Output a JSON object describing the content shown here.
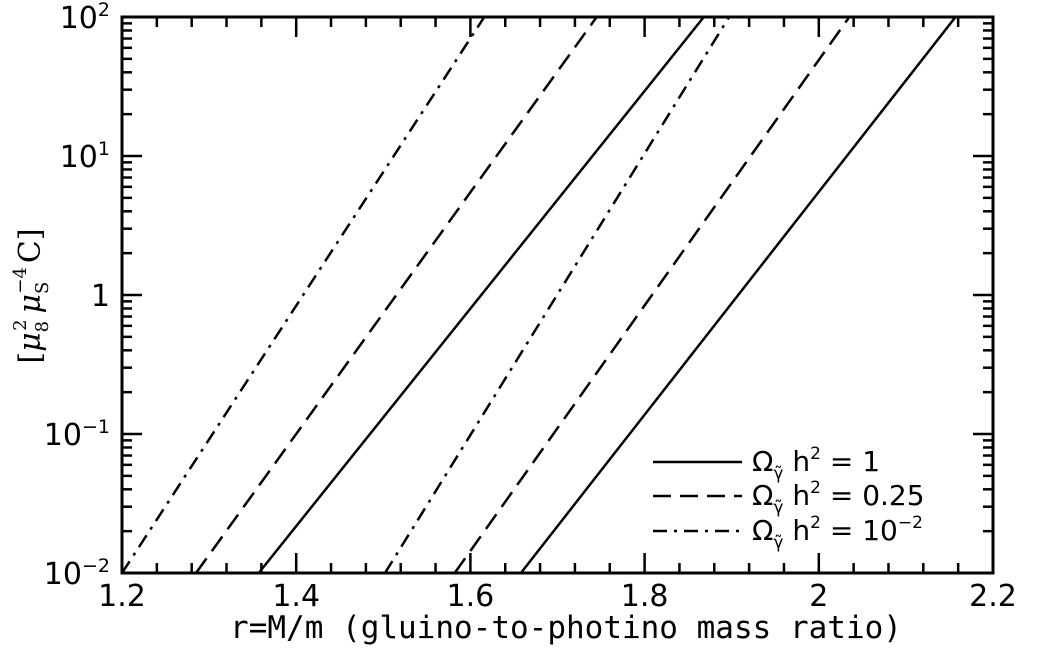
{
  "chart_data": {
    "type": "line",
    "title": "",
    "xlabel": "r=M/m (gluino-to-photino mass ratio)",
    "ylabel": {
      "open": "[",
      "mu": "μ",
      "sub1": "8",
      "sup1": "2",
      "sub2": "S",
      "sup2": "−4",
      "tail": "C]"
    },
    "xlim": [
      1.2,
      2.2
    ],
    "ylim": [
      0.01,
      100
    ],
    "y_scale": "log",
    "x_ticks": [
      {
        "value": 1.2,
        "label": "1.2"
      },
      {
        "value": 1.4,
        "label": "1.4"
      },
      {
        "value": 1.6,
        "label": "1.6"
      },
      {
        "value": 1.8,
        "label": "1.8"
      },
      {
        "value": 2.0,
        "label": "2"
      },
      {
        "value": 2.2,
        "label": "2.2"
      }
    ],
    "y_ticks": [
      {
        "value": 0.01,
        "base": "10",
        "exp": "−2"
      },
      {
        "value": 0.1,
        "base": "10",
        "exp": "−1"
      },
      {
        "value": 1,
        "base": "1",
        "exp": ""
      },
      {
        "value": 10,
        "base": "10",
        "exp": "1"
      },
      {
        "value": 100,
        "base": "10",
        "exp": "2"
      }
    ],
    "legend_position": "bottom-right",
    "legend": [
      {
        "style": "solid",
        "pre": "Ω",
        "sub": "γ̃",
        "mid": " h",
        "sup": "2",
        "post": " = 1"
      },
      {
        "style": "dashed",
        "pre": "Ω",
        "sub": "γ̃",
        "mid": " h",
        "sup": "2",
        "post": " = 0.25"
      },
      {
        "style": "dashdot",
        "pre": "Ω",
        "sub": "γ̃",
        "mid": " h",
        "sup": "2",
        "post": " = 10",
        "sup2": "−2"
      }
    ],
    "series": [
      {
        "style": "dashdot",
        "points": [
          [
            1.2,
            0.01
          ],
          [
            1.616,
            100
          ]
        ]
      },
      {
        "style": "dashed",
        "points": [
          [
            1.285,
            0.01
          ],
          [
            1.745,
            100
          ]
        ]
      },
      {
        "style": "solid",
        "points": [
          [
            1.357,
            0.01
          ],
          [
            1.868,
            100
          ]
        ]
      },
      {
        "style": "dashdot",
        "points": [
          [
            1.502,
            0.01
          ],
          [
            1.897,
            100
          ]
        ]
      },
      {
        "style": "dashed",
        "points": [
          [
            1.582,
            0.01
          ],
          [
            2.035,
            100
          ]
        ]
      },
      {
        "style": "solid",
        "points": [
          [
            1.658,
            0.01
          ],
          [
            2.157,
            100
          ]
        ]
      }
    ]
  }
}
